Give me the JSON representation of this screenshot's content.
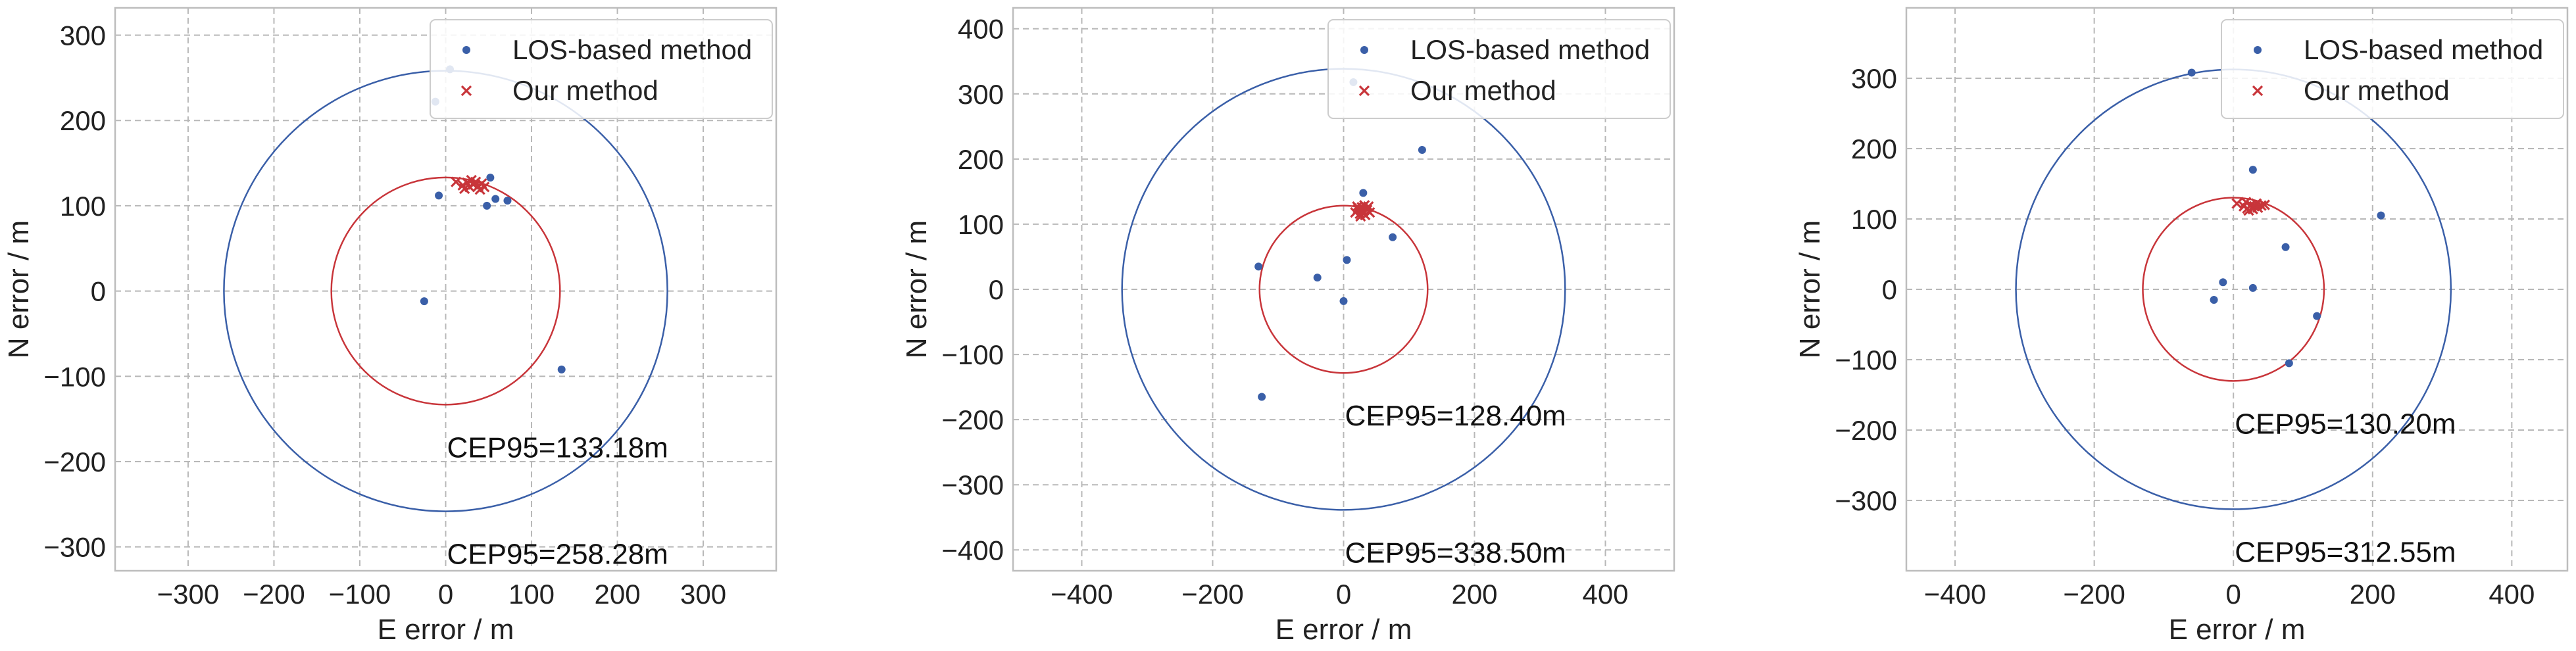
{
  "colors": {
    "los": "#3a5fa8",
    "ours": "#c8353a",
    "grid": "#b8b8b8",
    "frame": "#bdbdbd",
    "legend_border": "#cccccc"
  },
  "chart_data": [
    {
      "type": "scatter",
      "xlabel": "E error / m",
      "ylabel": "N error / m",
      "xlim": [
        -385,
        385
      ],
      "ylim": [
        -328,
        332
      ],
      "xticks": [
        -300,
        -200,
        -100,
        0,
        100,
        200,
        300
      ],
      "yticks": [
        -300,
        -200,
        -100,
        0,
        100,
        200,
        300
      ],
      "legend": {
        "location": "top-right",
        "entries": [
          "LOS-based method",
          "Our method"
        ]
      },
      "series": [
        {
          "name": "LOS-based method",
          "marker": "dot",
          "points": [
            [
              -12,
              222
            ],
            [
              5,
              260
            ],
            [
              -8,
              112
            ],
            [
              -25,
              -12
            ],
            [
              52,
              133
            ],
            [
              48,
              100
            ],
            [
              58,
              108
            ],
            [
              72,
              106
            ],
            [
              135,
              -92
            ]
          ]
        },
        {
          "name": "Our method",
          "marker": "x",
          "points": [
            [
              12,
              128
            ],
            [
              20,
              124
            ],
            [
              25,
              127
            ],
            [
              28,
              122
            ],
            [
              32,
              125
            ],
            [
              35,
              128
            ],
            [
              38,
              123
            ],
            [
              42,
              126
            ],
            [
              45,
              122
            ],
            [
              22,
              120
            ],
            [
              30,
              130
            ],
            [
              40,
              119
            ]
          ]
        }
      ],
      "circles": [
        {
          "series": "LOS-based method",
          "radius": 258.28,
          "label": "CEP95=258.28m"
        },
        {
          "series": "Our method",
          "radius": 133.18,
          "label": "CEP95=133.18m"
        }
      ]
    },
    {
      "type": "scatter",
      "xlabel": "E error / m",
      "ylabel": "N error / m",
      "xlim": [
        -505,
        505
      ],
      "ylim": [
        -432,
        432
      ],
      "xticks": [
        -400,
        -200,
        0,
        200,
        400
      ],
      "yticks": [
        -400,
        -300,
        -200,
        -100,
        0,
        100,
        200,
        300,
        400
      ],
      "legend": {
        "location": "top-right",
        "entries": [
          "LOS-based method",
          "Our method"
        ]
      },
      "series": [
        {
          "name": "LOS-based method",
          "marker": "dot",
          "points": [
            [
              15,
              318
            ],
            [
              120,
              214
            ],
            [
              30,
              148
            ],
            [
              -130,
              35
            ],
            [
              75,
              80
            ],
            [
              5,
              45
            ],
            [
              -40,
              18
            ],
            [
              0,
              -18
            ],
            [
              -125,
              -165
            ]
          ]
        },
        {
          "name": "Our method",
          "marker": "x",
          "points": [
            [
              18,
              118
            ],
            [
              22,
              123
            ],
            [
              25,
              116
            ],
            [
              28,
              126
            ],
            [
              30,
              120
            ],
            [
              33,
              114
            ],
            [
              36,
              122
            ],
            [
              40,
              118
            ],
            [
              26,
              112
            ],
            [
              21,
              127
            ],
            [
              38,
              127
            ],
            [
              32,
              129
            ]
          ]
        }
      ],
      "circles": [
        {
          "series": "LOS-based method",
          "radius": 338.5,
          "label": "CEP95=338.50m"
        },
        {
          "series": "Our method",
          "radius": 128.4,
          "label": "CEP95=128.40m"
        }
      ]
    },
    {
      "type": "scatter",
      "xlabel": "E error / m",
      "ylabel": "N error / m",
      "xlim": [
        -470,
        480
      ],
      "ylim": [
        -400,
        400
      ],
      "xticks": [
        -400,
        -200,
        0,
        200,
        400
      ],
      "yticks": [
        -300,
        -200,
        -100,
        0,
        100,
        200,
        300
      ],
      "legend": {
        "location": "top-right",
        "entries": [
          "LOS-based method",
          "Our method"
        ]
      },
      "series": [
        {
          "name": "LOS-based method",
          "marker": "dot",
          "points": [
            [
              -60,
              308
            ],
            [
              28,
              170
            ],
            [
              212,
              105
            ],
            [
              75,
              60
            ],
            [
              -15,
              10
            ],
            [
              -28,
              -15
            ],
            [
              28,
              2
            ],
            [
              120,
              -38
            ],
            [
              80,
              -105
            ]
          ]
        },
        {
          "name": "Our method",
          "marker": "x",
          "points": [
            [
              5,
              122
            ],
            [
              15,
              118
            ],
            [
              20,
              115
            ],
            [
              25,
              120
            ],
            [
              28,
              114
            ],
            [
              30,
              118
            ],
            [
              35,
              116
            ],
            [
              40,
              119
            ],
            [
              45,
              120
            ],
            [
              22,
              112
            ],
            [
              33,
              122
            ],
            [
              18,
              124
            ]
          ]
        }
      ],
      "circles": [
        {
          "series": "LOS-based method",
          "radius": 312.55,
          "label": "CEP95=312.55m"
        },
        {
          "series": "Our method",
          "radius": 130.2,
          "label": "CEP95=130.20m"
        }
      ]
    }
  ]
}
